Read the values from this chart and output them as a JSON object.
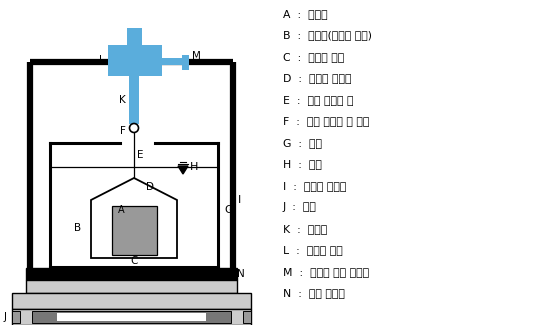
{
  "background": "#ffffff",
  "legend_items": [
    [
      "A",
      "시험편"
    ],
    [
      "B",
      "바구니(다공질 용기)"
    ],
    [
      "C",
      "바구니 밑면"
    ],
    [
      "D",
      "바구니 손잡이"
    ],
    [
      "E",
      "가는 황동선 줄"
    ],
    [
      "F",
      "가는 황동선 줄 고리"
    ],
    [
      "G",
      "수조"
    ],
    [
      "H",
      "수면"
    ],
    [
      "I",
      "스크류 지지대"
    ],
    [
      "J",
      "저울"
    ],
    [
      "K",
      "스크류"
    ],
    [
      "L",
      "스크류 몸체"
    ],
    [
      "M",
      "스크류 조정 손잡이"
    ],
    [
      "N",
      "수조 받침대"
    ]
  ],
  "blue_color": "#5aaddc",
  "gray_color": "#aaaaaa",
  "dark_gray": "#777777",
  "black": "#000000",
  "light_gray": "#cccccc",
  "mid_gray": "#999999"
}
